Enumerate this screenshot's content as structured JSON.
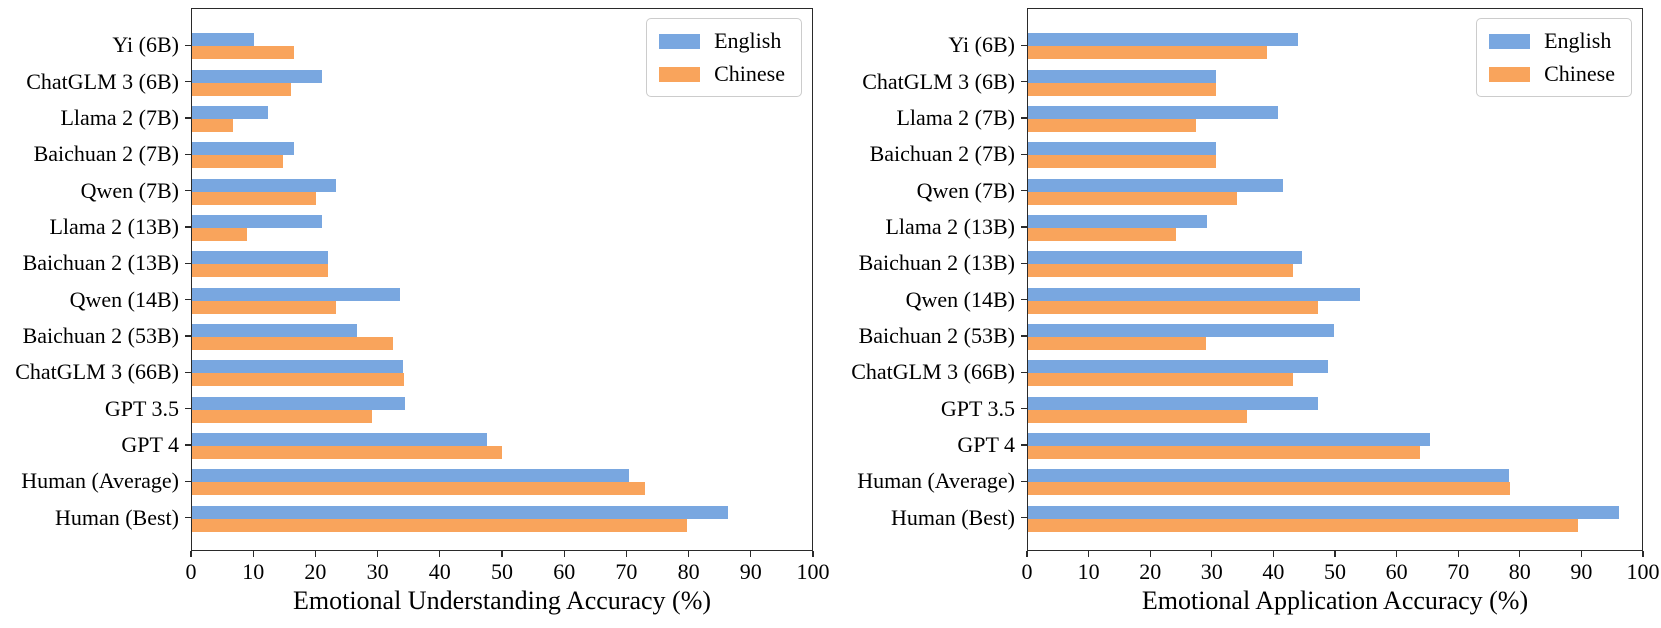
{
  "legend": {
    "entries": [
      "English",
      "Chinese"
    ]
  },
  "colors": {
    "english": "#79a7e0",
    "chinese": "#f9a45c",
    "axis": "#2a2a2a"
  },
  "chart_data": [
    {
      "type": "bar",
      "orientation": "horizontal",
      "xlabel": "Emotional Understanding Accuracy (%)",
      "ylabel": "",
      "xlim": [
        0,
        100
      ],
      "xticks": [
        0,
        10,
        20,
        30,
        40,
        50,
        60,
        70,
        80,
        90,
        100
      ],
      "grid": false,
      "legend_position": "upper right",
      "categories": [
        "Yi (6B)",
        "ChatGLM 3 (6B)",
        "Llama 2 (7B)",
        "Baichuan 2 (7B)",
        "Qwen (7B)",
        "Llama 2 (13B)",
        "Baichuan 2 (13B)",
        "Qwen (14B)",
        "Baichuan 2 (53B)",
        "ChatGLM 3 (66B)",
        "GPT 3.5",
        "GPT 4",
        "Human (Average)",
        "Human (Best)"
      ],
      "series": [
        {
          "name": "English",
          "color": "#79a7e0",
          "values": [
            10.0,
            21.0,
            12.2,
            16.5,
            23.3,
            21.0,
            22.0,
            33.6,
            26.6,
            34.1,
            34.3,
            47.5,
            70.5,
            86.4
          ]
        },
        {
          "name": "Chinese",
          "color": "#f9a45c",
          "values": [
            16.5,
            16.0,
            6.6,
            14.7,
            20.0,
            8.8,
            22.0,
            23.2,
            32.4,
            34.2,
            29.0,
            50.0,
            73.0,
            79.8
          ]
        }
      ]
    },
    {
      "type": "bar",
      "orientation": "horizontal",
      "xlabel": "Emotional Application Accuracy (%)",
      "ylabel": "",
      "xlim": [
        0,
        100
      ],
      "xticks": [
        0,
        10,
        20,
        30,
        40,
        50,
        60,
        70,
        80,
        90,
        100
      ],
      "grid": false,
      "legend_position": "upper right",
      "categories": [
        "Yi (6B)",
        "ChatGLM 3 (6B)",
        "Llama 2 (7B)",
        "Baichuan 2 (7B)",
        "Qwen (7B)",
        "Llama 2 (13B)",
        "Baichuan 2 (13B)",
        "Qwen (14B)",
        "Baichuan 2 (53B)",
        "ChatGLM 3 (66B)",
        "GPT 3.5",
        "GPT 4",
        "Human (Average)",
        "Human (Best)"
      ],
      "series": [
        {
          "name": "English",
          "color": "#79a7e0",
          "values": [
            44.0,
            30.7,
            40.7,
            30.7,
            41.5,
            29.1,
            44.7,
            54.0,
            49.9,
            48.9,
            47.3,
            65.4,
            78.4,
            96.3
          ]
        },
        {
          "name": "Chinese",
          "color": "#f9a45c",
          "values": [
            39.0,
            30.7,
            27.4,
            30.7,
            34.0,
            24.1,
            43.1,
            47.3,
            29.0,
            43.1,
            35.6,
            63.8,
            78.5,
            89.6
          ]
        }
      ]
    }
  ]
}
